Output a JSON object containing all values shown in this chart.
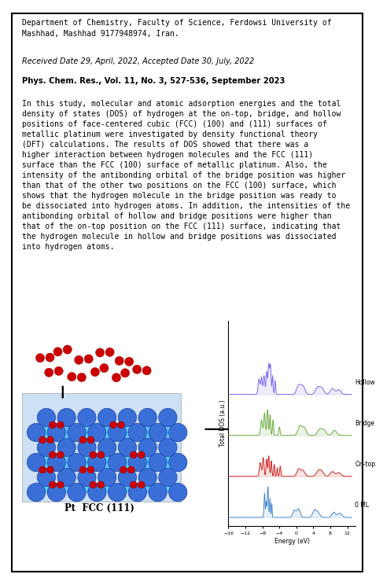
{
  "title_text": "Department of Chemistry, Faculty of Science, Ferdowsi University of\nMashhad, Mashhad 9177948974, Iran.",
  "received_text": "Received Date 29, April, 2022, Accepted Date 30, July, 2022",
  "journal_text": "Phys. Chem. Res., Vol. 11, No. 3, 527-536, September 2023",
  "abstract_text": "In this study, molecular and atomic adsorption energies and the total\ndensity of states (DOS) of hydrogen at the on-top, bridge, and hollow\npositions of face-centered cubic (FCC) (100) and (111) surfaces of\nmetallic platinum were investigated by density functional theory\n(DFT) calculations. The results of DOS showed that there was a\nhigher interaction between hydrogen molecules and the FCC (111)\nsurface than the FCC (100) surface of metallic platinum. Also, the\nintensity of the antibonding orbital of the bridge position was higher\nthan that of the other two positions on the FCC (100) surface, which\nshows that the hydrogen molecule in the bridge position was ready to\nbe dissociated into hydrogen atoms. In addition, the intensities of the\nantibonding orbital of hollow and bridge positions were higher than\nthat of the on-top position on the FCC (111) surface, indicating that\nthe hydrogen molecule in hollow and bridge positions was dissociated\ninto hydrogen atoms.",
  "caption_text": "Pt  FCC (111)",
  "dos_labels": [
    "Hollow",
    "Bridge",
    "On-top",
    "0 ML"
  ],
  "dos_colors": [
    "#7b68ee",
    "#6aaa3a",
    "#cc2222",
    "#4488cc"
  ],
  "energy_label": "Energy (eV)",
  "dos_ylabel": "Total DOS (a.u.)",
  "energy_ticks": [
    -16,
    -12,
    -8,
    -4,
    0,
    4,
    8,
    12
  ],
  "background_color": "#ffffff",
  "border_color": "#000000",
  "pt_color": "#3a6fd8",
  "pt_edge_color": "#1a3fa0",
  "h2_color": "#cc0000",
  "h2_edge_color": "#880000",
  "cyan_color": "#00bfff"
}
